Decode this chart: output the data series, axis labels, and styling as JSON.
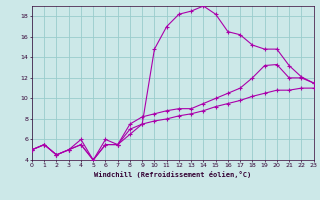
{
  "xlabel": "Windchill (Refroidissement éolien,°C)",
  "bg_color": "#cce8e8",
  "line_color": "#aa00aa",
  "grid_color": "#99cccc",
  "xlim": [
    0,
    23
  ],
  "ylim": [
    4,
    19
  ],
  "xticks": [
    0,
    1,
    2,
    3,
    4,
    5,
    6,
    7,
    8,
    9,
    10,
    11,
    12,
    13,
    14,
    15,
    16,
    17,
    18,
    19,
    20,
    21,
    22,
    23
  ],
  "yticks": [
    4,
    6,
    8,
    10,
    12,
    14,
    16,
    18
  ],
  "series1": [
    [
      0,
      5.0
    ],
    [
      1,
      5.5
    ],
    [
      2,
      4.5
    ],
    [
      3,
      5.0
    ],
    [
      4,
      6.0
    ],
    [
      5,
      4.0
    ],
    [
      6,
      6.0
    ],
    [
      7,
      5.5
    ],
    [
      8,
      6.5
    ],
    [
      9,
      7.5
    ],
    [
      10,
      14.8
    ],
    [
      11,
      17.0
    ],
    [
      12,
      18.2
    ],
    [
      13,
      18.5
    ],
    [
      14,
      19.0
    ],
    [
      15,
      18.2
    ],
    [
      16,
      16.5
    ],
    [
      17,
      16.2
    ],
    [
      18,
      15.2
    ],
    [
      19,
      14.8
    ],
    [
      20,
      14.8
    ],
    [
      21,
      13.2
    ],
    [
      22,
      12.1
    ],
    [
      23,
      11.5
    ]
  ],
  "series2": [
    [
      0,
      5.0
    ],
    [
      1,
      5.5
    ],
    [
      2,
      4.5
    ],
    [
      3,
      5.0
    ],
    [
      4,
      5.5
    ],
    [
      5,
      4.0
    ],
    [
      6,
      5.5
    ],
    [
      7,
      5.5
    ],
    [
      8,
      7.5
    ],
    [
      9,
      8.2
    ],
    [
      10,
      8.5
    ],
    [
      11,
      8.8
    ],
    [
      12,
      9.0
    ],
    [
      13,
      9.0
    ],
    [
      14,
      9.5
    ],
    [
      15,
      10.0
    ],
    [
      16,
      10.5
    ],
    [
      17,
      11.0
    ],
    [
      18,
      12.0
    ],
    [
      19,
      13.2
    ],
    [
      20,
      13.3
    ],
    [
      21,
      12.0
    ],
    [
      22,
      12.0
    ],
    [
      23,
      11.5
    ]
  ],
  "series3": [
    [
      0,
      5.0
    ],
    [
      1,
      5.5
    ],
    [
      2,
      4.5
    ],
    [
      3,
      5.0
    ],
    [
      4,
      5.5
    ],
    [
      5,
      4.0
    ],
    [
      6,
      5.5
    ],
    [
      7,
      5.5
    ],
    [
      8,
      7.0
    ],
    [
      9,
      7.5
    ],
    [
      10,
      7.8
    ],
    [
      11,
      8.0
    ],
    [
      12,
      8.3
    ],
    [
      13,
      8.5
    ],
    [
      14,
      8.8
    ],
    [
      15,
      9.2
    ],
    [
      16,
      9.5
    ],
    [
      17,
      9.8
    ],
    [
      18,
      10.2
    ],
    [
      19,
      10.5
    ],
    [
      20,
      10.8
    ],
    [
      21,
      10.8
    ],
    [
      22,
      11.0
    ],
    [
      23,
      11.0
    ]
  ]
}
